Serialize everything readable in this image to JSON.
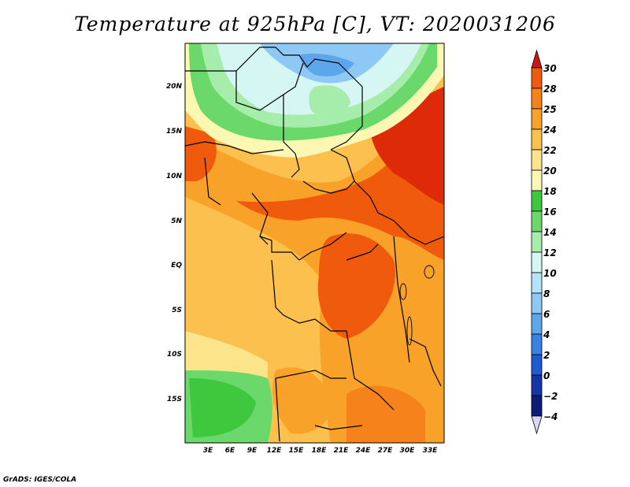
{
  "title": "Temperature at 925hPa [C], VT: 2020031206",
  "credit": "GrADS: IGES/COLA",
  "map": {
    "y_ticks": [
      {
        "label": "20N"
      },
      {
        "label": "15N"
      },
      {
        "label": "10N"
      },
      {
        "label": "5N"
      },
      {
        "label": "EQ"
      },
      {
        "label": "5S"
      },
      {
        "label": "10S"
      },
      {
        "label": "15S"
      }
    ],
    "x_ticks": [
      {
        "label": "3E"
      },
      {
        "label": "6E"
      },
      {
        "label": "9E"
      },
      {
        "label": "12E"
      },
      {
        "label": "15E"
      },
      {
        "label": "18E"
      },
      {
        "label": "21E"
      },
      {
        "label": "24E"
      },
      {
        "label": "27E"
      },
      {
        "label": "30E"
      },
      {
        "label": "33E"
      }
    ]
  },
  "colorbar": {
    "levels": [
      {
        "label": "30",
        "color": "#dd2a08"
      },
      {
        "label": "28",
        "color": "#ef5a0c"
      },
      {
        "label": "25",
        "color": "#f5821a"
      },
      {
        "label": "24",
        "color": "#f9a22a"
      },
      {
        "label": "22",
        "color": "#fbc04e"
      },
      {
        "label": "20",
        "color": "#fce48a"
      },
      {
        "label": "18",
        "color": "#fcf8b4"
      },
      {
        "label": "16",
        "color": "#3ec83e"
      },
      {
        "label": "14",
        "color": "#6ad86a"
      },
      {
        "label": "12",
        "color": "#a6ecaa"
      },
      {
        "label": "10",
        "color": "#d6f6f4"
      },
      {
        "label": "8",
        "color": "#b4e4fa"
      },
      {
        "label": "6",
        "color": "#8ec8f4"
      },
      {
        "label": "4",
        "color": "#5ea6ec"
      },
      {
        "label": "2",
        "color": "#3a82e4"
      },
      {
        "label": "0",
        "color": "#1e5ad2"
      },
      {
        "label": "−2",
        "color": "#1436a8"
      },
      {
        "label": "−4",
        "color": "#0c1c7c"
      }
    ],
    "top_triangle_color": "#cc1810",
    "bottom_triangle_color": "#d8d8f6"
  }
}
